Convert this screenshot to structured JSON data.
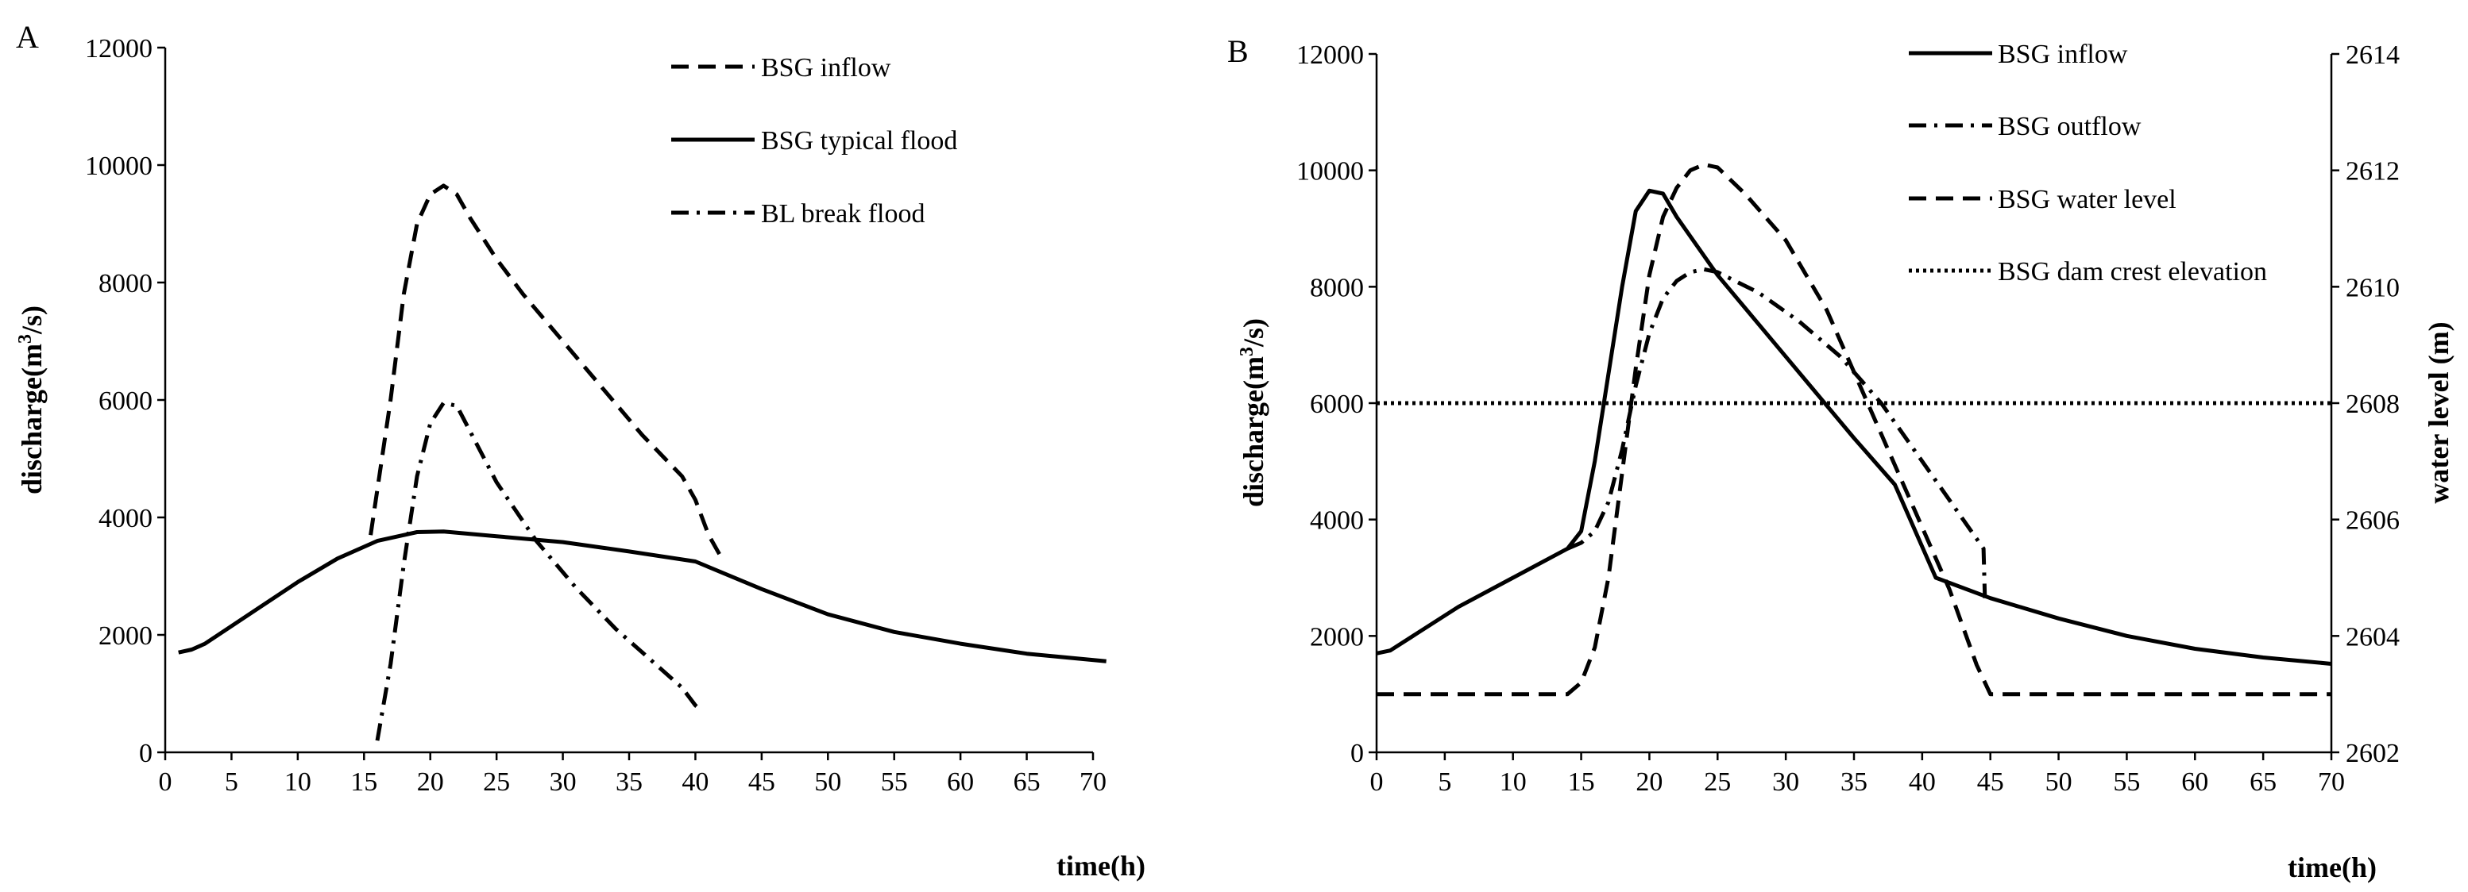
{
  "chart_data": [
    {
      "panel": "A",
      "type": "line",
      "xlabel": "time(h)",
      "ylabel": "discharge(m³/s)",
      "ylabel_parts": {
        "base": "discharge(m",
        "sup": "3",
        "tail": "/s)"
      },
      "xlim": [
        0,
        70
      ],
      "ylim": [
        0,
        12000
      ],
      "xticks": [
        "0",
        "5",
        "10",
        "15",
        "20",
        "25",
        "30",
        "35",
        "40",
        "45",
        "50",
        "55",
        "60",
        "65",
        "70"
      ],
      "yticks": [
        "0",
        "2000",
        "4000",
        "6000",
        "8000",
        "10000",
        "12000"
      ],
      "grid": false,
      "legend_position": "top-center",
      "series": [
        {
          "name": "BSG inflow",
          "style": "dashed",
          "color": "#000000",
          "x": [
            15.5,
            17,
            18,
            19,
            20,
            21,
            22,
            23,
            25,
            27,
            30,
            33,
            36,
            39,
            40,
            41,
            42
          ],
          "y": [
            3700,
            6000,
            7800,
            9000,
            9500,
            9650,
            9500,
            9100,
            8400,
            7800,
            7000,
            6200,
            5400,
            4700,
            4300,
            3700,
            3300
          ]
        },
        {
          "name": "BSG typical flood",
          "style": "solid",
          "color": "#000000",
          "x": [
            1,
            2,
            3,
            5,
            7,
            10,
            13,
            16,
            19,
            21,
            25,
            30,
            35,
            40,
            45,
            50,
            55,
            60,
            65,
            71
          ],
          "y": [
            1700,
            1750,
            1850,
            2150,
            2450,
            2900,
            3300,
            3600,
            3750,
            3760,
            3680,
            3580,
            3420,
            3250,
            2780,
            2350,
            2050,
            1850,
            1680,
            1550
          ]
        },
        {
          "name": "BL break flood",
          "style": "dash-dot",
          "color": "#000000",
          "x": [
            16,
            17,
            18,
            19,
            20,
            21,
            22,
            25,
            28,
            31,
            34,
            37,
            39,
            40,
            40.5
          ],
          "y": [
            200,
            1500,
            3200,
            4700,
            5600,
            5950,
            5900,
            4600,
            3600,
            2800,
            2100,
            1500,
            1100,
            800,
            700
          ]
        }
      ]
    },
    {
      "panel": "B",
      "type": "line",
      "xlabel": "time(h)",
      "ylabel": "discharge(m³/s)",
      "ylabel_parts": {
        "base": "discharge(m",
        "sup": "3",
        "tail": "/s)"
      },
      "y2label": "water level (m)",
      "xlim": [
        0,
        70
      ],
      "ylim": [
        0,
        12000
      ],
      "y2lim": [
        2602,
        2614
      ],
      "xticks": [
        "0",
        "5",
        "10",
        "15",
        "20",
        "25",
        "30",
        "35",
        "40",
        "45",
        "50",
        "55",
        "60",
        "65",
        "70"
      ],
      "yticks": [
        "0",
        "2000",
        "4000",
        "6000",
        "8000",
        "10000",
        "12000"
      ],
      "y2ticks": [
        "2602",
        "2604",
        "2606",
        "2608",
        "2610",
        "2612",
        "2614"
      ],
      "grid": false,
      "legend_position": "top-right",
      "series": [
        {
          "name": "BSG inflow",
          "style": "solid",
          "axis": "left",
          "color": "#000000",
          "x": [
            0,
            1,
            3,
            6,
            10,
            14,
            15,
            16,
            17,
            18,
            19,
            20,
            21,
            22,
            25,
            30,
            35,
            38,
            41,
            45,
            50,
            55,
            60,
            65,
            70
          ],
          "y": [
            1700,
            1750,
            2050,
            2500,
            3000,
            3500,
            3800,
            5000,
            6500,
            8000,
            9300,
            9650,
            9600,
            9200,
            8200,
            6800,
            5400,
            4600,
            3000,
            2650,
            2300,
            2000,
            1780,
            1630,
            1520
          ]
        },
        {
          "name": "BSG outflow",
          "style": "dash-dot",
          "axis": "left",
          "color": "#000000",
          "x": [
            14,
            15,
            16,
            17,
            18,
            19,
            20,
            21,
            22,
            23,
            24,
            25,
            28,
            31,
            34,
            37,
            40,
            43,
            44.5,
            44.6
          ],
          "y": [
            3500,
            3600,
            3800,
            4300,
            5200,
            6300,
            7200,
            7800,
            8100,
            8250,
            8300,
            8250,
            7900,
            7400,
            6800,
            6000,
            5000,
            4000,
            3500,
            2650
          ]
        },
        {
          "name": "BSG water level",
          "style": "dashed",
          "axis": "right",
          "color": "#000000",
          "x": [
            0,
            14,
            15,
            16,
            17,
            18,
            19,
            20,
            21,
            22,
            23,
            24,
            25,
            27,
            30,
            33,
            36,
            39,
            42,
            44,
            45,
            50,
            55,
            60,
            65,
            70
          ],
          "y": [
            2603,
            2603,
            2603.2,
            2603.8,
            2605,
            2606.8,
            2608.6,
            2610.2,
            2611.2,
            2611.7,
            2612,
            2612.1,
            2612.05,
            2611.6,
            2610.8,
            2609.6,
            2608,
            2606.4,
            2604.8,
            2603.5,
            2603,
            2603,
            2603,
            2603,
            2603,
            2603
          ]
        },
        {
          "name": "BSG dam crest elevation",
          "style": "dotted",
          "axis": "right",
          "color": "#000000",
          "x": [
            0,
            70
          ],
          "y": [
            2608,
            2608
          ]
        }
      ]
    }
  ]
}
